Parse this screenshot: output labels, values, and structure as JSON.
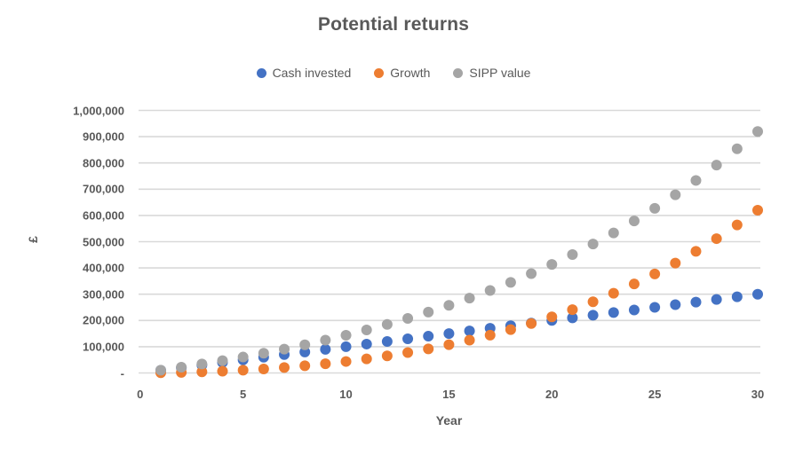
{
  "title": "Potential returns",
  "axes": {
    "y_title": "£",
    "x_title": "Year"
  },
  "colors": {
    "cash_invested": "#4472C4",
    "growth": "#ED7D31",
    "sipp_value": "#A5A5A5",
    "text": "#595959",
    "gridline": "#D9D9D9"
  },
  "chart_data": {
    "type": "scatter",
    "title": "Potential returns",
    "xlabel": "Year",
    "ylabel": "£",
    "xlim": [
      0,
      30
    ],
    "ylim": [
      0,
      1000000
    ],
    "grid": "horizontal-only",
    "legend_position": "top-center",
    "x_ticks": [
      0,
      5,
      10,
      15,
      20,
      25,
      30
    ],
    "y_ticks": [
      0,
      100000,
      200000,
      300000,
      400000,
      500000,
      600000,
      700000,
      800000,
      900000,
      1000000
    ],
    "y_tick_labels": [
      "-",
      "100,000",
      "200,000",
      "300,000",
      "400,000",
      "500,000",
      "600,000",
      "700,000",
      "800,000",
      "900,000",
      "1,000,000"
    ],
    "x": [
      1,
      2,
      3,
      4,
      5,
      6,
      7,
      8,
      9,
      10,
      11,
      12,
      13,
      14,
      15,
      16,
      17,
      18,
      19,
      20,
      21,
      22,
      23,
      24,
      25,
      26,
      27,
      28,
      29,
      30
    ],
    "series": [
      {
        "name": "Cash invested",
        "color": "#4472C4",
        "values": [
          10000,
          20000,
          30000,
          40000,
          50000,
          60000,
          70000,
          80000,
          90000,
          100000,
          110000,
          120000,
          130000,
          140000,
          150000,
          160000,
          170000,
          180000,
          190000,
          200000,
          210000,
          220000,
          230000,
          240000,
          250000,
          260000,
          270000,
          280000,
          290000,
          300000
        ]
      },
      {
        "name": "Growth",
        "color": "#ED7D31",
        "values": [
          700,
          2000,
          4100,
          6900,
          10600,
          15200,
          20800,
          27300,
          34900,
          43700,
          53700,
          65000,
          77700,
          91800,
          107500,
          124900,
          144100,
          165200,
          188300,
          213500,
          241000,
          271000,
          303500,
          338900,
          377200,
          418600,
          463300,
          511600,
          563700,
          619900
        ]
      },
      {
        "name": "SIPP value",
        "color": "#A5A5A5",
        "values": [
          10700,
          22000,
          34100,
          46900,
          60600,
          75200,
          90800,
          107300,
          124900,
          143700,
          163700,
          185000,
          207700,
          231800,
          257500,
          284900,
          314100,
          345200,
          378300,
          413500,
          451000,
          491000,
          533500,
          578900,
          627200,
          678600,
          733300,
          791600,
          853700,
          919900
        ]
      }
    ]
  }
}
